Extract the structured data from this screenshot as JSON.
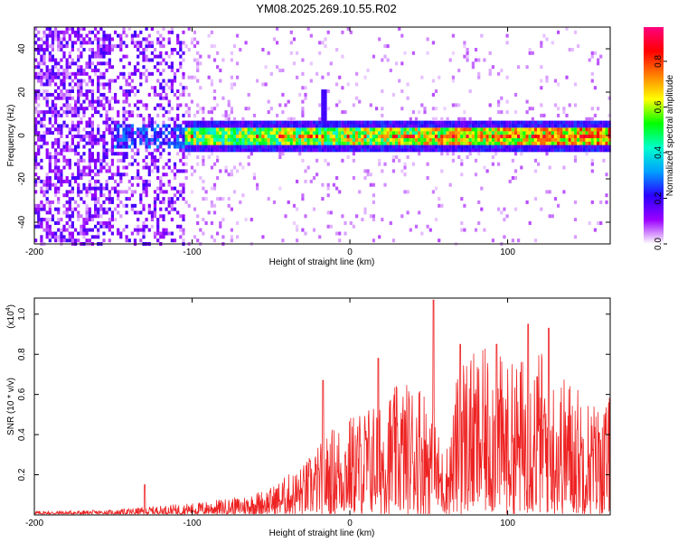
{
  "page": {
    "title": "YM08.2025.269.10.55.R02"
  },
  "chart_data": [
    {
      "type": "heatmap",
      "xlabel": "Height of straight line (km)",
      "ylabel": "Frequency (Hz)",
      "xlim": [
        -200,
        165
      ],
      "ylim": [
        -50,
        50
      ],
      "x_ticks": [
        -200,
        -100,
        0,
        100
      ],
      "y_ticks": [
        -40,
        -20,
        0,
        20,
        40
      ],
      "grid": false,
      "colorbar": {
        "label": "Normalized spectral amplitude",
        "range": [
          0,
          0.95
        ],
        "ticks": [
          0.0,
          0.2,
          0.4,
          0.6,
          0.8
        ],
        "colors": [
          "#ffffff",
          "#9b00ff",
          "#2b00ff",
          "#00a0ff",
          "#00ffcc",
          "#00ff00",
          "#ffff00",
          "#ff8000",
          "#ff0000",
          "#ff007f"
        ]
      },
      "features": {
        "band_center_hz": 0,
        "band_halfwidth_hz": 4,
        "noise_region_x": [
          -200,
          -105
        ],
        "spike_x": -17,
        "spike_freq_hz": 21
      }
    },
    {
      "type": "line",
      "xlabel": "Height of straight line (km)",
      "ylabel": "SNR (10 * v/v)",
      "y_multiplier_label": "(x10",
      "y_multiplier_exp": "4",
      "y_multiplier_close": ")",
      "xlim": [
        -200,
        165
      ],
      "ylim": [
        0,
        1.08
      ],
      "x_ticks": [
        -200,
        -100,
        0,
        100
      ],
      "y_ticks": [
        0.2,
        0.4,
        0.6,
        0.8,
        1.0
      ],
      "series_color": "#ee2222",
      "envelope": {
        "x": [
          -200,
          -150,
          -130,
          -100,
          -70,
          -50,
          -40,
          -30,
          -20,
          -10,
          0,
          10,
          20,
          30,
          40,
          45,
          50,
          55,
          60,
          65,
          70,
          80,
          90,
          100,
          110,
          120,
          130,
          140,
          150,
          160,
          165
        ],
        "y": [
          0.02,
          0.025,
          0.04,
          0.06,
          0.09,
          0.14,
          0.2,
          0.25,
          0.35,
          0.45,
          0.5,
          0.55,
          0.6,
          0.65,
          0.68,
          0.7,
          0.6,
          0.45,
          0.3,
          0.5,
          0.85,
          0.8,
          0.85,
          0.75,
          0.8,
          0.85,
          0.7,
          0.7,
          0.6,
          0.55,
          0.6
        ]
      },
      "peaks": [
        {
          "x": -130,
          "y": 0.15
        },
        {
          "x": -17,
          "y": 0.67
        },
        {
          "x": 18,
          "y": 0.78
        },
        {
          "x": 53,
          "y": 1.07
        },
        {
          "x": 70,
          "y": 0.85
        },
        {
          "x": 93,
          "y": 0.85
        },
        {
          "x": 113,
          "y": 0.95
        },
        {
          "x": 126,
          "y": 0.93
        }
      ]
    }
  ]
}
